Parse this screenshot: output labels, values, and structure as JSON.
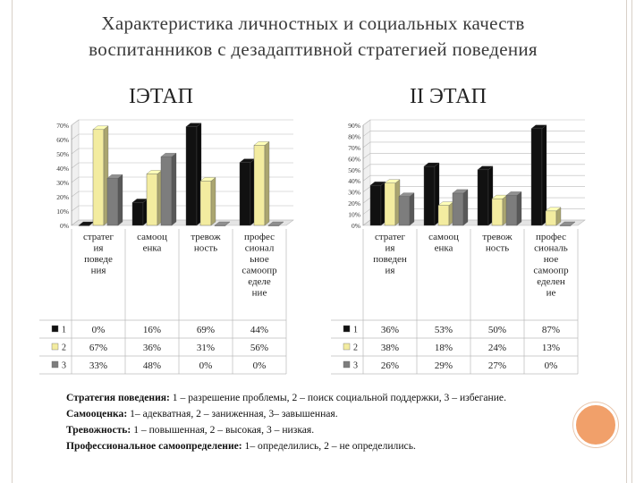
{
  "title_lines": [
    "Характеристика личностных и социальных качеств",
    "воспитанников с дезадаптивной стратегией поведения"
  ],
  "chart_data": [
    {
      "type": "bar",
      "title": "IЭТАП",
      "categories": [
        [
          "стратег",
          "ия",
          "поведе",
          "ния"
        ],
        [
          "самооц",
          "енка"
        ],
        [
          "тревож",
          "ность"
        ],
        [
          "профес",
          "сионал",
          "ьное",
          "самоопр",
          "еделе",
          "ние"
        ]
      ],
      "yticks": [
        "0%",
        "10%",
        "20%",
        "30%",
        "40%",
        "50%",
        "60%",
        "70%"
      ],
      "ylim": [
        0,
        70
      ],
      "series": [
        {
          "name": "1",
          "values": [
            0,
            16,
            69,
            44
          ],
          "labels": [
            "0%",
            "16%",
            "69%",
            "44%"
          ]
        },
        {
          "name": "2",
          "values": [
            67,
            36,
            31,
            56
          ],
          "labels": [
            "67%",
            "36%",
            "31%",
            "56%"
          ]
        },
        {
          "name": "3",
          "values": [
            33,
            48,
            0,
            0
          ],
          "labels": [
            "33%",
            "48%",
            "0%",
            "0%"
          ]
        }
      ]
    },
    {
      "type": "bar",
      "title": "II ЭТАП",
      "categories": [
        [
          "стратег",
          "ия",
          "поведен",
          "ия"
        ],
        [
          "самооц",
          "енка"
        ],
        [
          "тревож",
          "ность"
        ],
        [
          "профес",
          "сиональ",
          "ное",
          "самоопр",
          "еделен",
          "ие"
        ]
      ],
      "yticks": [
        "0%",
        "10%",
        "20%",
        "30%",
        "40%",
        "50%",
        "60%",
        "70%",
        "80%",
        "90%"
      ],
      "ylim": [
        0,
        90
      ],
      "series": [
        {
          "name": "1",
          "values": [
            36,
            53,
            50,
            87
          ],
          "labels": [
            "36%",
            "53%",
            "50%",
            "87%"
          ]
        },
        {
          "name": "2",
          "values": [
            38,
            18,
            24,
            13
          ],
          "labels": [
            "38%",
            "18%",
            "24%",
            "13%"
          ]
        },
        {
          "name": "3",
          "values": [
            26,
            29,
            27,
            0
          ],
          "labels": [
            "26%",
            "29%",
            "27%",
            "0%"
          ]
        }
      ]
    }
  ],
  "colors": {
    "series1": "#111111",
    "series2": "#f3eca0",
    "series3": "#7d7d7d"
  },
  "legend": [
    {
      "term": "Стратегия поведения:",
      "text": " 1 – разрешение проблемы, 2 – поиск социальной поддержки, 3 – избегание."
    },
    {
      "term": "Самооценка:",
      "text": " 1– адекватная, 2 – заниженная, 3– завышенная."
    },
    {
      "term": "Тревожность:",
      "text": " 1 – повышенная, 2 – высокая, 3 – низкая."
    },
    {
      "term": "Профессиональное самоопределение:",
      "text": " 1– определились, 2 – не определились."
    }
  ]
}
